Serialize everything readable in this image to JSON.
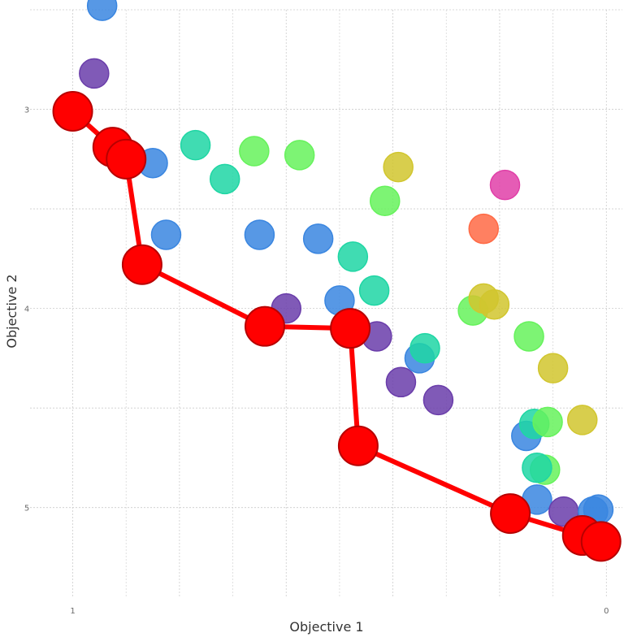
{
  "chart_data": {
    "type": "scatter",
    "xlabel": "Objective 1",
    "ylabel": "Objective 2",
    "x_reversed": true,
    "y_reversed": true,
    "xlim": [
      1.08,
      -0.03
    ],
    "ylim": [
      2.5,
      5.45
    ],
    "x_ticks": [
      {
        "value": 1,
        "label": "1"
      },
      {
        "value": 0,
        "label": "0"
      }
    ],
    "y_ticks": [
      {
        "value": 3,
        "label": "3"
      },
      {
        "value": 4,
        "label": "4"
      },
      {
        "value": 5,
        "label": "5"
      }
    ],
    "x_grid": [
      1,
      0.8,
      0.6,
      0.4,
      0.2,
      0
    ],
    "y_grid": [
      2.5,
      3,
      3.5,
      4,
      4.5,
      5
    ],
    "grid": true,
    "colors": {
      "blue": "#3a86e0",
      "purple": "#6a3daa",
      "teal": "#1fd6a4",
      "green": "#66f25c",
      "olive": "#d1c62e",
      "magenta": "#e040a8",
      "orange": "#ff6a45",
      "front": "#ff0000"
    },
    "points": [
      {
        "x": 0.945,
        "y": 2.48,
        "color": "blue"
      },
      {
        "x": 0.96,
        "y": 2.82,
        "color": "purple"
      },
      {
        "x": 0.85,
        "y": 3.27,
        "color": "blue"
      },
      {
        "x": 0.825,
        "y": 3.63,
        "color": "blue"
      },
      {
        "x": 0.77,
        "y": 3.18,
        "color": "teal"
      },
      {
        "x": 0.715,
        "y": 3.35,
        "color": "teal"
      },
      {
        "x": 0.66,
        "y": 3.21,
        "color": "green"
      },
      {
        "x": 0.65,
        "y": 3.63,
        "color": "blue"
      },
      {
        "x": 0.575,
        "y": 3.23,
        "color": "green"
      },
      {
        "x": 0.54,
        "y": 3.65,
        "color": "blue"
      },
      {
        "x": 0.6,
        "y": 4.0,
        "color": "purple"
      },
      {
        "x": 0.5,
        "y": 3.96,
        "color": "blue"
      },
      {
        "x": 0.475,
        "y": 3.74,
        "color": "teal"
      },
      {
        "x": 0.435,
        "y": 3.91,
        "color": "teal"
      },
      {
        "x": 0.43,
        "y": 4.14,
        "color": "purple"
      },
      {
        "x": 0.415,
        "y": 3.46,
        "color": "green"
      },
      {
        "x": 0.39,
        "y": 3.29,
        "color": "olive"
      },
      {
        "x": 0.385,
        "y": 4.37,
        "color": "purple"
      },
      {
        "x": 0.35,
        "y": 4.25,
        "color": "blue"
      },
      {
        "x": 0.34,
        "y": 4.2,
        "color": "teal"
      },
      {
        "x": 0.315,
        "y": 4.46,
        "color": "purple"
      },
      {
        "x": 0.25,
        "y": 4.01,
        "color": "green"
      },
      {
        "x": 0.21,
        "y": 3.98,
        "color": "olive"
      },
      {
        "x": 0.23,
        "y": 3.95,
        "color": "olive"
      },
      {
        "x": 0.23,
        "y": 3.6,
        "color": "orange"
      },
      {
        "x": 0.19,
        "y": 3.38,
        "color": "magenta"
      },
      {
        "x": 0.145,
        "y": 4.14,
        "color": "green"
      },
      {
        "x": 0.1,
        "y": 4.3,
        "color": "olive"
      },
      {
        "x": 0.15,
        "y": 4.64,
        "color": "blue"
      },
      {
        "x": 0.135,
        "y": 4.58,
        "color": "teal"
      },
      {
        "x": 0.11,
        "y": 4.57,
        "color": "green"
      },
      {
        "x": 0.045,
        "y": 4.56,
        "color": "olive"
      },
      {
        "x": 0.115,
        "y": 4.81,
        "color": "green"
      },
      {
        "x": 0.13,
        "y": 4.8,
        "color": "teal"
      },
      {
        "x": 0.13,
        "y": 4.96,
        "color": "blue"
      },
      {
        "x": 0.08,
        "y": 5.02,
        "color": "purple"
      },
      {
        "x": 0.025,
        "y": 5.02,
        "color": "blue"
      },
      {
        "x": 0.015,
        "y": 5.01,
        "color": "blue"
      }
    ],
    "front": {
      "color": "front",
      "points": [
        {
          "x": 1.0,
          "y": 3.01
        },
        {
          "x": 0.925,
          "y": 3.19
        },
        {
          "x": 0.9,
          "y": 3.25
        },
        {
          "x": 0.87,
          "y": 3.78
        },
        {
          "x": 0.64,
          "y": 4.09
        },
        {
          "x": 0.48,
          "y": 4.1
        },
        {
          "x": 0.465,
          "y": 4.69
        },
        {
          "x": 0.18,
          "y": 5.03
        },
        {
          "x": 0.045,
          "y": 5.14
        },
        {
          "x": 0.01,
          "y": 5.17
        }
      ]
    }
  }
}
